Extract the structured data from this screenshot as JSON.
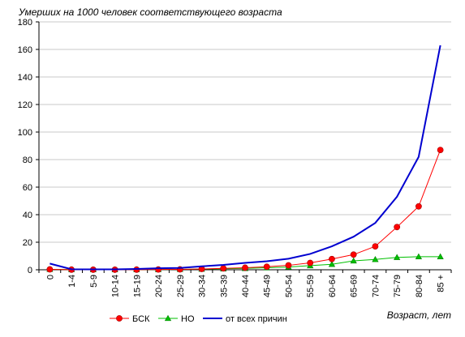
{
  "chart_data": {
    "type": "line",
    "title": "Умерших на 1000 человек соответствующего возраста",
    "xlabel": "Возраст, лет",
    "ylabel": "",
    "ylim": [
      0,
      180
    ],
    "yticks": [
      0,
      20,
      40,
      60,
      80,
      100,
      120,
      140,
      160,
      180
    ],
    "grid": "horizontal",
    "legend_position": "bottom",
    "categories": [
      "0",
      "1-4",
      "5-9",
      "10-14",
      "15-19",
      "20-24",
      "25-29",
      "30-34",
      "35-39",
      "40-44",
      "45-49",
      "50-54",
      "55-59",
      "60-64",
      "65-69",
      "70-74",
      "75-79",
      "80-84",
      "85 +"
    ],
    "series": [
      {
        "name": "БСК",
        "color": "#ff0000",
        "marker": "circle",
        "values": [
          0.3,
          0.1,
          0.05,
          0.05,
          0.1,
          0.2,
          0.3,
          0.6,
          1,
          1.5,
          2.2,
          3.2,
          5,
          7.8,
          11,
          17,
          31,
          46,
          87
        ]
      },
      {
        "name": "НО",
        "color": "#00c000",
        "marker": "triangle",
        "values": [
          0.3,
          0.2,
          0.1,
          0.1,
          0.15,
          0.2,
          0.3,
          0.5,
          0.7,
          1,
          1.5,
          2,
          3,
          4,
          6.5,
          7.5,
          9,
          9.5,
          9.5
        ]
      },
      {
        "name": "от всех причин",
        "color": "#0000d0",
        "marker": "none",
        "values": [
          4.5,
          0.4,
          0.3,
          0.3,
          0.6,
          1.1,
          1.3,
          2.5,
          3.5,
          5,
          6.2,
          8,
          11.5,
          17,
          24,
          34,
          53,
          82,
          163
        ]
      }
    ]
  }
}
